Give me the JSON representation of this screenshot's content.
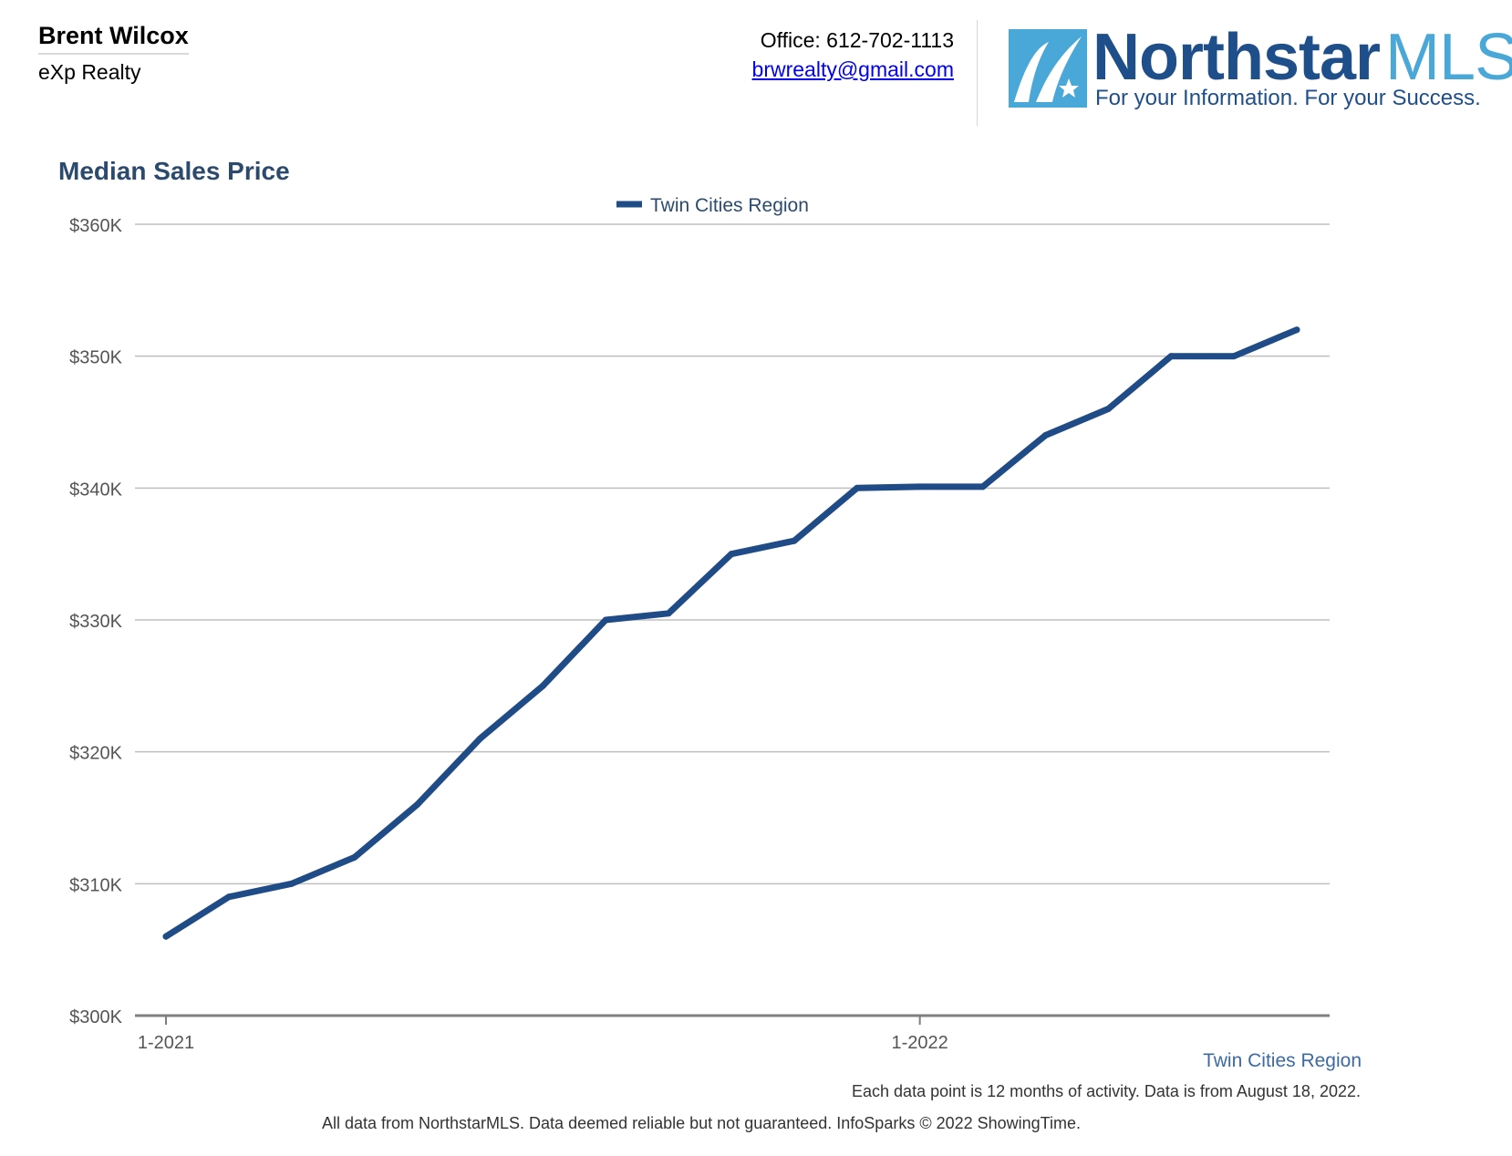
{
  "header": {
    "agent_name": "Brent Wilcox",
    "agent_company": "eXp Realty",
    "office": "Office: 612-702-1113",
    "email": "brwrealty@gmail.com"
  },
  "logo": {
    "name_part1": "Northstar",
    "name_part2": "MLS",
    "tagline": "For your Information. For your Success."
  },
  "colors": {
    "series": "#1f4b86",
    "title": "#2c4a6e",
    "grid": "#bfbfbf",
    "axis": "#7f7f7f"
  },
  "chart_data": {
    "type": "line",
    "title": "Median Sales Price",
    "xlabel": "",
    "ylabel": "",
    "ylim": [
      300000,
      360000
    ],
    "yticks": [
      "$300K",
      "$310K",
      "$320K",
      "$330K",
      "$340K",
      "$350K",
      "$360K"
    ],
    "yticks_values": [
      300000,
      310000,
      320000,
      330000,
      340000,
      350000,
      360000
    ],
    "xticks": [
      {
        "label": "1-2021",
        "index": 0
      },
      {
        "label": "1-2022",
        "index": 12
      }
    ],
    "legend": {
      "position": "top-center",
      "entries": [
        "Twin Cities Region"
      ]
    },
    "grid": true,
    "series": [
      {
        "name": "Twin Cities Region",
        "x": [
          "1-2021",
          "2-2021",
          "3-2021",
          "4-2021",
          "5-2021",
          "6-2021",
          "7-2021",
          "8-2021",
          "9-2021",
          "10-2021",
          "11-2021",
          "12-2021",
          "1-2022",
          "2-2022",
          "3-2022",
          "4-2022",
          "5-2022",
          "6-2022",
          "7-2022"
        ],
        "values": [
          306000,
          309000,
          310000,
          312000,
          316000,
          321000,
          325000,
          330000,
          330500,
          335000,
          336000,
          340000,
          340100,
          340100,
          344000,
          346000,
          350000,
          350000,
          352000
        ]
      }
    ]
  },
  "footer": {
    "region_label": "Twin Cities Region",
    "note": "Each data point is 12 months of activity. Data is from August 18, 2022.",
    "disclaimer": "All data from NorthstarMLS. Data deemed reliable but not guaranteed. InfoSparks © 2022 ShowingTime."
  }
}
